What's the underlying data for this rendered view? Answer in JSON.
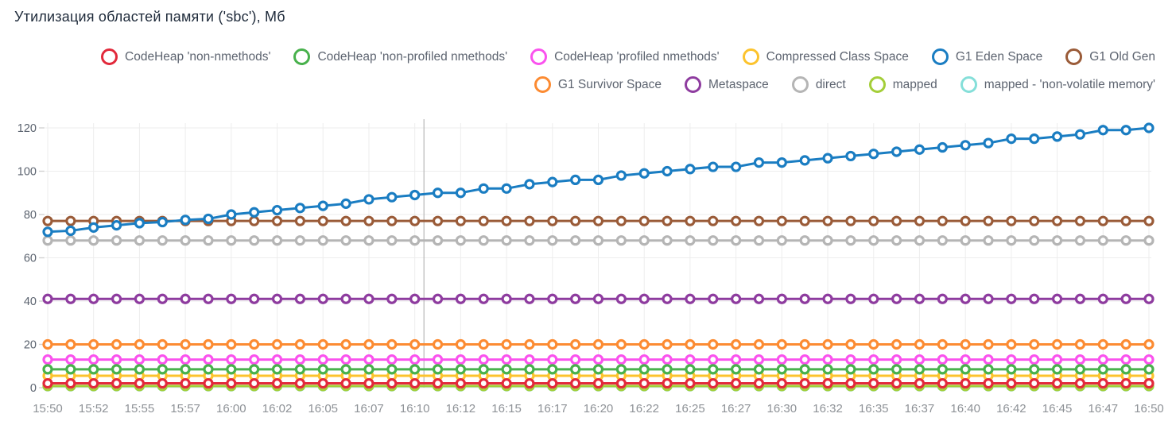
{
  "title": "Утилизация областей памяти ('sbc'), Мб",
  "colors": {
    "background": "#ffffff",
    "title_text": "#1e2a3a",
    "legend_text": "#5d6470",
    "y_axis_text": "#5a626e",
    "x_axis_text": "#8e9297",
    "gridline": "#ededed",
    "axis_tick": "#d2d2d2",
    "cursor_line": "#b8b8b8",
    "marker_fill": "#ffffff"
  },
  "chart_data": {
    "type": "line",
    "title": "Утилизация областей памяти ('sbc'), Мб",
    "xlabel": "",
    "ylabel": "",
    "ylim": [
      0,
      120
    ],
    "y_ticks": [
      0,
      20,
      40,
      60,
      80,
      100,
      120
    ],
    "grid": true,
    "legend_position": "top",
    "marker": "open-circle",
    "num_points": 49,
    "points_per_label_interval": 2,
    "cursor_line_at_point_index": 16.4,
    "x_tick_labels": [
      "15:50",
      "15:52",
      "15:55",
      "15:57",
      "16:00",
      "16:02",
      "16:05",
      "16:07",
      "16:10",
      "16:12",
      "16:15",
      "16:17",
      "16:20",
      "16:22",
      "16:25",
      "16:27",
      "16:30",
      "16:32",
      "16:35",
      "16:37",
      "16:40",
      "16:42",
      "16:45",
      "16:47",
      "16:50"
    ],
    "legend_rows": [
      [
        0,
        1,
        2,
        3,
        4,
        5
      ],
      [
        6,
        7,
        8,
        9,
        10
      ]
    ],
    "series": [
      {
        "name": "CodeHeap 'non-nmethods'",
        "color": "#e2293b",
        "value": 2
      },
      {
        "name": "CodeHeap 'non-profiled nmethods'",
        "color": "#48b14c",
        "value": 8.5
      },
      {
        "name": "CodeHeap 'profiled nmethods'",
        "color": "#fa52ee",
        "value": 13
      },
      {
        "name": "Compressed Class Space",
        "color": "#fcc32d",
        "value": 5.5
      },
      {
        "name": "G1 Eden Space",
        "color": "#1a7dc2",
        "values": [
          72,
          72.5,
          74,
          75,
          76,
          76.5,
          77.5,
          78,
          80,
          81,
          82,
          83,
          84,
          85,
          87,
          88,
          89,
          90,
          90,
          92,
          92,
          94,
          95,
          96,
          96,
          98,
          99,
          100,
          101,
          102,
          102,
          104,
          104,
          105,
          106,
          107,
          108,
          109,
          110,
          111,
          112,
          113,
          115,
          115,
          116,
          117,
          119,
          119,
          120
        ]
      },
      {
        "name": "G1 Old Gen",
        "color": "#9a5b38",
        "value": 77
      },
      {
        "name": "G1 Survivor Space",
        "color": "#fc8b32",
        "value": 20
      },
      {
        "name": "Metaspace",
        "color": "#8e3c9f",
        "value": 41
      },
      {
        "name": "direct",
        "color": "#b5b5b5",
        "value": 68
      },
      {
        "name": "mapped",
        "color": "#a4ce39",
        "value": 0.8
      },
      {
        "name": "mapped - 'non-volatile memory'",
        "color": "#85dfd9",
        "value": 0.7
      }
    ]
  }
}
